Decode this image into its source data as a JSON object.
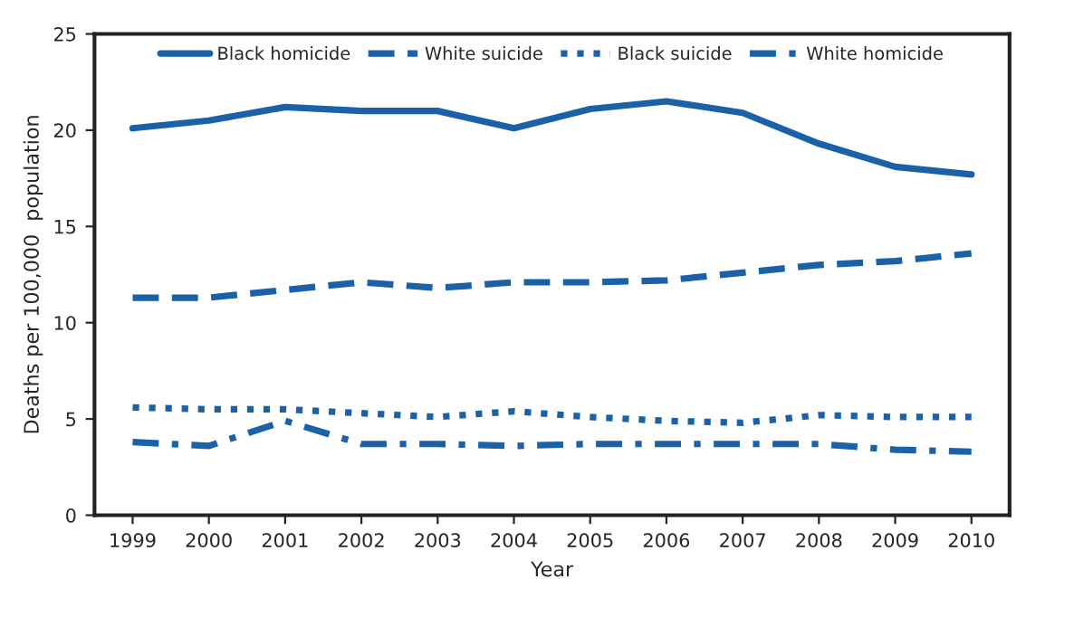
{
  "chart_data": {
    "type": "line",
    "xlabel": "Year",
    "ylabel": "Deaths per 100,000  population",
    "categories": [
      "1999",
      "2000",
      "2001",
      "2002",
      "2003",
      "2004",
      "2005",
      "2006",
      "2007",
      "2008",
      "2009",
      "2010"
    ],
    "series": [
      {
        "name": "Black homicide",
        "color": "#1b61a8",
        "line_style": "solid",
        "values": [
          20.1,
          20.5,
          21.2,
          21.0,
          21.0,
          20.1,
          21.1,
          21.5,
          20.9,
          19.3,
          18.1,
          17.7
        ]
      },
      {
        "name": "White suicide",
        "color": "#1b61a8",
        "line_style": "dashed",
        "values": [
          11.3,
          11.3,
          11.7,
          12.1,
          11.8,
          12.1,
          12.1,
          12.2,
          12.6,
          13.0,
          13.2,
          13.6
        ]
      },
      {
        "name": "Black suicide",
        "color": "#1b61a8",
        "line_style": "dotted",
        "values": [
          5.6,
          5.5,
          5.5,
          5.3,
          5.1,
          5.4,
          5.1,
          4.9,
          4.8,
          5.2,
          5.1,
          5.1
        ]
      },
      {
        "name": "White homicide",
        "color": "#1b61a8",
        "line_style": "dashdot",
        "values": [
          3.8,
          3.6,
          4.9,
          3.7,
          3.7,
          3.6,
          3.7,
          3.7,
          3.7,
          3.7,
          3.4,
          3.3
        ]
      }
    ],
    "ylim": [
      0,
      25
    ],
    "yticks": [
      0,
      5,
      10,
      15,
      20,
      25
    ],
    "grid": false,
    "legend": "top",
    "marker": "none"
  }
}
